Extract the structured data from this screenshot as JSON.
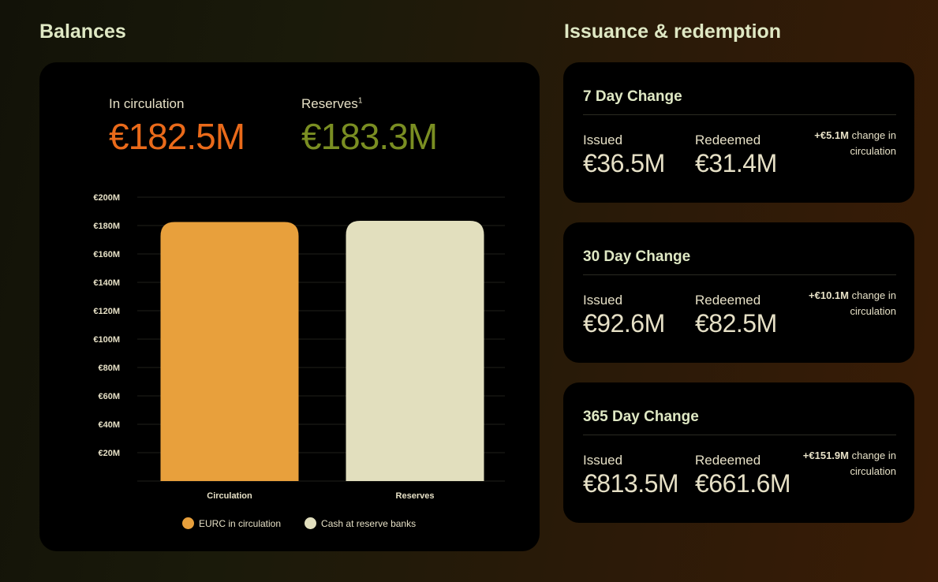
{
  "balances": {
    "title": "Balances",
    "circulation_label": "In circulation",
    "circulation_value": "€182.5M",
    "reserves_label": "Reserves",
    "reserves_sup": "1",
    "reserves_value": "€183.3M"
  },
  "issuance": {
    "title": "Issuance & redemption",
    "cards": [
      {
        "title": "7 Day Change",
        "issued_label": "Issued",
        "issued_value": "€36.5M",
        "redeemed_label": "Redeemed",
        "redeemed_value": "€31.4M",
        "change_value": "+€5.1M",
        "change_text": "change in circulation"
      },
      {
        "title": "30 Day Change",
        "issued_label": "Issued",
        "issued_value": "€92.6M",
        "redeemed_label": "Redeemed",
        "redeemed_value": "€82.5M",
        "change_value": "+€10.1M",
        "change_text": "change in circulation"
      },
      {
        "title": "365 Day Change",
        "issued_label": "Issued",
        "issued_value": "€813.5M",
        "redeemed_label": "Redeemed",
        "redeemed_value": "€661.6M",
        "change_value": "+€151.9M",
        "change_text": "change in circulation"
      }
    ]
  },
  "colors": {
    "circulation": "#e8a03c",
    "reserves": "#e2dfbe",
    "circulation_text": "#ea6a1a",
    "reserves_text": "#7a8e22"
  },
  "chart_data": {
    "type": "bar",
    "categories": [
      "Circulation",
      "Reserves"
    ],
    "values": [
      182.5,
      183.3
    ],
    "unit": "€M",
    "ylim": [
      0,
      200
    ],
    "yticks": [
      20,
      40,
      60,
      80,
      100,
      120,
      140,
      160,
      180,
      200
    ],
    "ytick_labels": [
      "€20M",
      "€40M",
      "€60M",
      "€80M",
      "€100M",
      "€120M",
      "€140M",
      "€160M",
      "€180M",
      "€200M"
    ],
    "legend": [
      "EURC in circulation",
      "Cash at reserve banks"
    ],
    "legend_placement": "bottom",
    "grid": true
  }
}
